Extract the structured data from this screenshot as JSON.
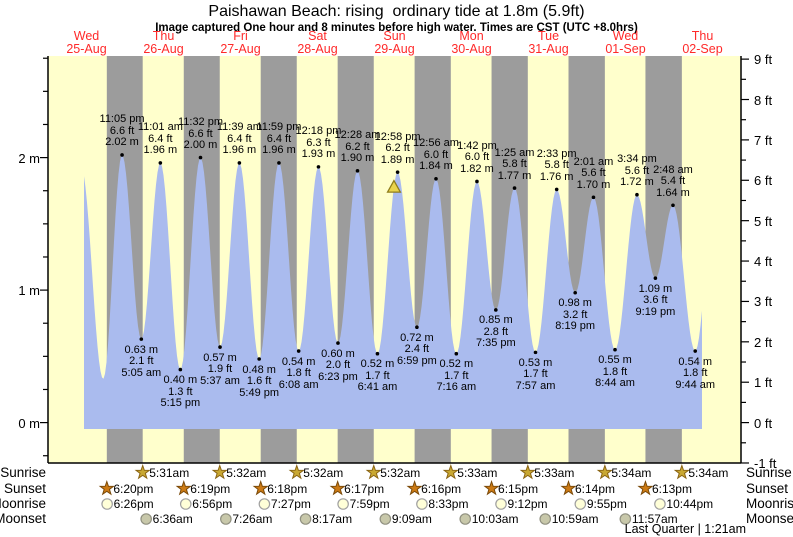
{
  "title": "Paishawan Beach: rising  ordinary tide at 1.8m (5.9ft)",
  "subtitle": "Image captured One hour and 8 minutes before high water. Times are CST (UTC +8.0hrs)",
  "days": [
    {
      "name": "Wed",
      "date": "25-Aug"
    },
    {
      "name": "Thu",
      "date": "26-Aug"
    },
    {
      "name": "Fri",
      "date": "27-Aug"
    },
    {
      "name": "Sat",
      "date": "28-Aug"
    },
    {
      "name": "Sun",
      "date": "29-Aug"
    },
    {
      "name": "Mon",
      "date": "30-Aug"
    },
    {
      "name": "Tue",
      "date": "31-Aug"
    },
    {
      "name": "Wed",
      "date": "01-Sep"
    },
    {
      "name": "Thu",
      "date": "02-Sep"
    }
  ],
  "colors": {
    "day_band": "#ffffcc",
    "night_band": "#9c9c9c",
    "tide_fill": "#aabbee",
    "frame": "#000000",
    "date_label": "#ff2a2a",
    "marker_fill": "#e9d44c",
    "marker_stroke": "#8f7d1a",
    "sunrise_fill": "#c9a832",
    "sunrise_stroke": "#8a6414",
    "sunset_fill": "#cc7a14",
    "sunset_stroke": "#7a4a0a",
    "moonrise_fill": "#ffffd8",
    "moonrise_stroke": "#a0a0a0",
    "moonset_fill": "#c8c8aa",
    "moonset_stroke": "#909080"
  },
  "chart_data": {
    "type": "area",
    "title": "Paishawan Beach: rising  ordinary tide at 1.8m (5.9ft)",
    "x_axis": {
      "unit": "days",
      "categories": [
        "25-Aug",
        "26-Aug",
        "27-Aug",
        "28-Aug",
        "29-Aug",
        "30-Aug",
        "31-Aug",
        "01-Sep",
        "02-Sep"
      ]
    },
    "y_axis_left": {
      "unit": "m",
      "labels": [
        {
          "v": 0,
          "label": "0 m"
        },
        {
          "v": 1,
          "label": "1 m"
        },
        {
          "v": 2,
          "label": "2 m"
        }
      ],
      "minor_step_m": 0.25
    },
    "y_axis_right": {
      "unit": "ft",
      "labels": [
        {
          "v": -1,
          "label": "-1 ft"
        },
        {
          "v": 0,
          "label": "0 ft"
        },
        {
          "v": 1,
          "label": "1 ft"
        },
        {
          "v": 2,
          "label": "2 ft"
        },
        {
          "v": 3,
          "label": "3 ft"
        },
        {
          "v": 4,
          "label": "4 ft"
        },
        {
          "v": 5,
          "label": "5 ft"
        },
        {
          "v": 6,
          "label": "6 ft"
        },
        {
          "v": 7,
          "label": "7 ft"
        },
        {
          "v": 8,
          "label": "8 ft"
        },
        {
          "v": 9,
          "label": "9 ft"
        }
      ],
      "minor_step_ft": 0.5
    },
    "ylim_m": [
      -0.3048,
      2.7432
    ],
    "extremes": [
      {
        "type": "high",
        "day": 0,
        "t": 10.3,
        "height_m": 1.93,
        "estimated": true
      },
      {
        "type": "low",
        "day": 0,
        "t": 17.2,
        "height_m": 0.33,
        "estimated": true
      },
      {
        "type": "high",
        "day": 0,
        "t": 23.083,
        "time": "11:05 pm",
        "ft": "6.6 ft",
        "m": "2.02 m",
        "height_m": 2.02
      },
      {
        "type": "low",
        "day": 1,
        "t": 5.083,
        "time": "5:05 am",
        "ft": "2.1 ft",
        "m": "0.63 m",
        "height_m": 0.63
      },
      {
        "type": "high",
        "day": 1,
        "t": 11.017,
        "time": "11:01 am",
        "ft": "6.4 ft",
        "m": "1.96 m",
        "height_m": 1.96
      },
      {
        "type": "low",
        "day": 1,
        "t": 17.25,
        "time": "5:15 pm",
        "ft": "1.3 ft",
        "m": "0.40 m",
        "height_m": 0.4
      },
      {
        "type": "high",
        "day": 1,
        "t": 23.533,
        "time": "11:32 pm",
        "ft": "6.6 ft",
        "m": "2.00 m",
        "height_m": 2.0
      },
      {
        "type": "low",
        "day": 2,
        "t": 5.617,
        "time": "5:37 am",
        "ft": "1.9 ft",
        "m": "0.57 m",
        "height_m": 0.57
      },
      {
        "type": "high",
        "day": 2,
        "t": 11.65,
        "time": "11:39 am",
        "ft": "6.4 ft",
        "m": "1.96 m",
        "height_m": 1.96
      },
      {
        "type": "low",
        "day": 2,
        "t": 17.817,
        "time": "5:49 pm",
        "ft": "1.6 ft",
        "m": "0.48 m",
        "height_m": 0.48
      },
      {
        "type": "high",
        "day": 2,
        "t": 23.983,
        "time": "11:59 pm",
        "ft": "6.4 ft",
        "m": "1.96 m",
        "height_m": 1.96
      },
      {
        "type": "low",
        "day": 3,
        "t": 6.133,
        "time": "6:08 am",
        "ft": "1.8 ft",
        "m": "0.54 m",
        "height_m": 0.54
      },
      {
        "type": "high",
        "day": 3,
        "t": 12.3,
        "time": "12:18 pm",
        "ft": "6.3 ft",
        "m": "1.93 m",
        "height_m": 1.93
      },
      {
        "type": "low",
        "day": 3,
        "t": 18.383,
        "time": "6:23 pm",
        "ft": "2.0 ft",
        "m": "0.60 m",
        "height_m": 0.6
      },
      {
        "type": "high",
        "day": 4,
        "t": 0.467,
        "time": "12:28 am",
        "ft": "6.2 ft",
        "m": "1.90 m",
        "height_m": 1.9
      },
      {
        "type": "low",
        "day": 4,
        "t": 6.683,
        "time": "6:41 am",
        "ft": "1.7 ft",
        "m": "0.52 m",
        "height_m": 0.52
      },
      {
        "type": "high",
        "day": 4,
        "t": 12.967,
        "time": "12:58 pm",
        "ft": "6.2 ft",
        "m": "1.89 m",
        "height_m": 1.89
      },
      {
        "type": "low",
        "day": 4,
        "t": 18.983,
        "time": "6:59 pm",
        "ft": "2.4 ft",
        "m": "0.72 m",
        "height_m": 0.72
      },
      {
        "type": "high",
        "day": 5,
        "t": 0.933,
        "time": "12:56 am",
        "ft": "6.0 ft",
        "m": "1.84 m",
        "height_m": 1.84
      },
      {
        "type": "low",
        "day": 5,
        "t": 7.267,
        "time": "7:16 am",
        "ft": "1.7 ft",
        "m": "0.52 m",
        "height_m": 0.52
      },
      {
        "type": "high",
        "day": 5,
        "t": 13.7,
        "time": "1:42 pm",
        "ft": "6.0 ft",
        "m": "1.82 m",
        "height_m": 1.82
      },
      {
        "type": "low",
        "day": 5,
        "t": 19.583,
        "time": "7:35 pm",
        "ft": "2.8 ft",
        "m": "0.85 m",
        "height_m": 0.85
      },
      {
        "type": "high",
        "day": 6,
        "t": 1.417,
        "time": "1:25 am",
        "ft": "5.8 ft",
        "m": "1.77 m",
        "height_m": 1.77
      },
      {
        "type": "low",
        "day": 6,
        "t": 7.95,
        "time": "7:57 am",
        "ft": "1.7 ft",
        "m": "0.53 m",
        "height_m": 0.53
      },
      {
        "type": "high",
        "day": 6,
        "t": 14.55,
        "time": "2:33 pm",
        "ft": "5.8 ft",
        "m": "1.76 m",
        "height_m": 1.76
      },
      {
        "type": "low",
        "day": 6,
        "t": 20.317,
        "time": "8:19 pm",
        "ft": "3.2 ft",
        "m": "0.98 m",
        "height_m": 0.98
      },
      {
        "type": "high",
        "day": 7,
        "t": 2.017,
        "time": "2:01 am",
        "ft": "5.6 ft",
        "m": "1.70 m",
        "height_m": 1.7
      },
      {
        "type": "low",
        "day": 7,
        "t": 8.733,
        "time": "8:44 am",
        "ft": "1.8 ft",
        "m": "0.55 m",
        "height_m": 0.55
      },
      {
        "type": "high",
        "day": 7,
        "t": 15.567,
        "time": "3:34 pm",
        "ft": "5.6 ft",
        "m": "1.72 m",
        "height_m": 1.72
      },
      {
        "type": "low",
        "day": 7,
        "t": 21.317,
        "time": "9:19 pm",
        "ft": "3.6 ft",
        "m": "1.09 m",
        "height_m": 1.09
      },
      {
        "type": "high",
        "day": 8,
        "t": 2.8,
        "time": "2:48 am",
        "ft": "5.4 ft",
        "m": "1.64 m",
        "height_m": 1.64
      },
      {
        "type": "low",
        "day": 8,
        "t": 9.733,
        "time": "9:44 am",
        "ft": "1.8 ft",
        "m": "0.54 m",
        "height_m": 0.54
      },
      {
        "type": "high",
        "day": 8,
        "t": 15.9,
        "height_m": 1.7,
        "estimated": true
      }
    ],
    "current_marker": {
      "day": 4,
      "t": 11.83,
      "height_m": 1.8
    }
  },
  "almanac": {
    "rows": [
      {
        "label": "Sunrise",
        "icon": "sunrise-star",
        "events": [
          {
            "day": 1,
            "t": 5.517,
            "time": "5:31am"
          },
          {
            "day": 2,
            "t": 5.533,
            "time": "5:32am"
          },
          {
            "day": 3,
            "t": 5.533,
            "time": "5:32am"
          },
          {
            "day": 4,
            "t": 5.533,
            "time": "5:32am"
          },
          {
            "day": 5,
            "t": 5.55,
            "time": "5:33am"
          },
          {
            "day": 6,
            "t": 5.55,
            "time": "5:33am"
          },
          {
            "day": 7,
            "t": 5.567,
            "time": "5:34am"
          },
          {
            "day": 8,
            "t": 5.567,
            "time": "5:34am"
          }
        ]
      },
      {
        "label": "Sunset",
        "icon": "sunset-star",
        "events": [
          {
            "day": 0,
            "t": 18.333,
            "time": "6:20pm"
          },
          {
            "day": 1,
            "t": 18.317,
            "time": "6:19pm"
          },
          {
            "day": 2,
            "t": 18.3,
            "time": "6:18pm"
          },
          {
            "day": 3,
            "t": 18.283,
            "time": "6:17pm"
          },
          {
            "day": 4,
            "t": 18.267,
            "time": "6:16pm"
          },
          {
            "day": 5,
            "t": 18.25,
            "time": "6:15pm"
          },
          {
            "day": 6,
            "t": 18.233,
            "time": "6:14pm"
          },
          {
            "day": 7,
            "t": 18.217,
            "time": "6:13pm"
          }
        ]
      },
      {
        "label": "Moonrise",
        "icon": "moonrise-circle",
        "events": [
          {
            "day": 0,
            "t": 18.433,
            "time": "6:26pm"
          },
          {
            "day": 1,
            "t": 18.933,
            "time": "6:56pm"
          },
          {
            "day": 2,
            "t": 19.45,
            "time": "7:27pm"
          },
          {
            "day": 3,
            "t": 19.983,
            "time": "7:59pm"
          },
          {
            "day": 4,
            "t": 20.55,
            "time": "8:33pm"
          },
          {
            "day": 5,
            "t": 21.2,
            "time": "9:12pm"
          },
          {
            "day": 6,
            "t": 21.917,
            "time": "9:55pm"
          },
          {
            "day": 7,
            "t": 22.733,
            "time": "10:44pm"
          }
        ]
      },
      {
        "label": "Moonset",
        "icon": "moonset-circle",
        "events": [
          {
            "day": 1,
            "t": 6.6,
            "time": "6:36am"
          },
          {
            "day": 2,
            "t": 7.433,
            "time": "7:26am"
          },
          {
            "day": 3,
            "t": 8.283,
            "time": "8:17am"
          },
          {
            "day": 4,
            "t": 9.15,
            "time": "9:09am"
          },
          {
            "day": 5,
            "t": 10.05,
            "time": "10:03am"
          },
          {
            "day": 6,
            "t": 10.983,
            "time": "10:59am"
          },
          {
            "day": 7,
            "t": 11.95,
            "time": "11:57am"
          }
        ]
      }
    ],
    "footer": "Last Quarter | 1:21am"
  }
}
